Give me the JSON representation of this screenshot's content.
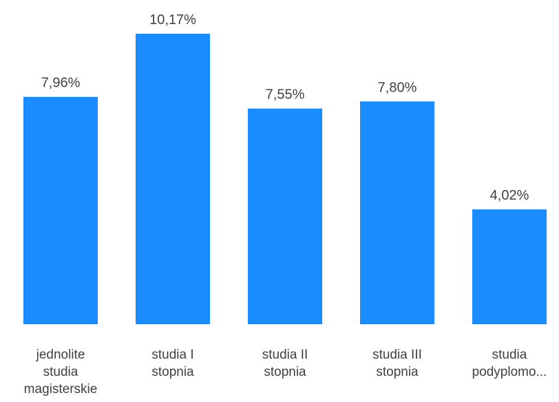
{
  "chart_data": {
    "type": "bar",
    "categories": [
      [
        "jednolite",
        "studia",
        "magisterskie"
      ],
      [
        "studia I",
        "stopnia"
      ],
      [
        "studia II",
        "stopnia"
      ],
      [
        "studia III",
        "stopnia"
      ],
      [
        "studia",
        "podyplomo..."
      ]
    ],
    "values": [
      7.96,
      10.17,
      7.55,
      7.8,
      4.02
    ],
    "data_labels": [
      "7,96%",
      "10,17%",
      "7,55%",
      "7,80%",
      "4,02%"
    ],
    "ylim": [
      0,
      10.17
    ],
    "grid": false,
    "legend": "none",
    "bar_color": "#1a8cff"
  }
}
